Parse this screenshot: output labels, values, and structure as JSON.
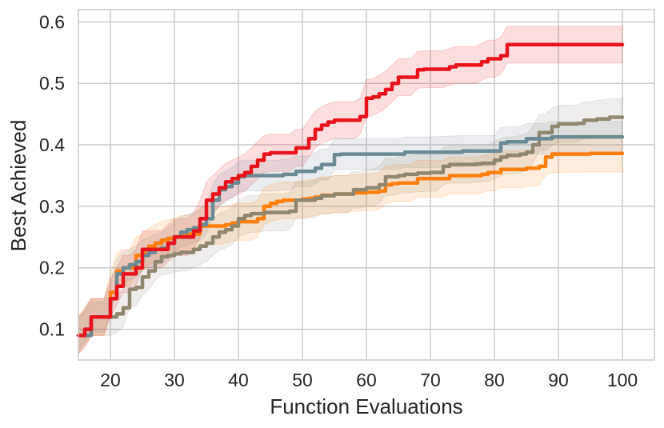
{
  "chart_data": {
    "type": "line",
    "title": "",
    "xlabel": "Function Evaluations",
    "ylabel": "Best Achieved",
    "xlim": [
      15,
      105
    ],
    "ylim": [
      0.05,
      0.62
    ],
    "xticks": [
      20,
      30,
      40,
      50,
      60,
      70,
      80,
      90,
      100
    ],
    "yticks": [
      0.1,
      0.2,
      0.3,
      0.4,
      0.5,
      0.6
    ],
    "grid": true,
    "legend": "none",
    "series": [
      {
        "name": "red",
        "color": "#e8141d",
        "points": [
          [
            15,
            0.09
          ],
          [
            16,
            0.1
          ],
          [
            17,
            0.12
          ],
          [
            18,
            0.12
          ],
          [
            19,
            0.12
          ],
          [
            20,
            0.15
          ],
          [
            21,
            0.17
          ],
          [
            22,
            0.19
          ],
          [
            23,
            0.19
          ],
          [
            24,
            0.2
          ],
          [
            25,
            0.23
          ],
          [
            26,
            0.23
          ],
          [
            27,
            0.23
          ],
          [
            28,
            0.23
          ],
          [
            29,
            0.24
          ],
          [
            30,
            0.25
          ],
          [
            31,
            0.25
          ],
          [
            32,
            0.25
          ],
          [
            33,
            0.26
          ],
          [
            34,
            0.28
          ],
          [
            35,
            0.31
          ],
          [
            36,
            0.32
          ],
          [
            37,
            0.33
          ],
          [
            38,
            0.34
          ],
          [
            39,
            0.345
          ],
          [
            40,
            0.35
          ],
          [
            41,
            0.355
          ],
          [
            42,
            0.365
          ],
          [
            43,
            0.375
          ],
          [
            44,
            0.385
          ],
          [
            45,
            0.387
          ],
          [
            46,
            0.387
          ],
          [
            47,
            0.387
          ],
          [
            48,
            0.387
          ],
          [
            49,
            0.395
          ],
          [
            50,
            0.395
          ],
          [
            51,
            0.41
          ],
          [
            52,
            0.425
          ],
          [
            53,
            0.432
          ],
          [
            54,
            0.437
          ],
          [
            55,
            0.44
          ],
          [
            56,
            0.44
          ],
          [
            57,
            0.44
          ],
          [
            58,
            0.44
          ],
          [
            59,
            0.446
          ],
          [
            60,
            0.476
          ],
          [
            61,
            0.478
          ],
          [
            62,
            0.483
          ],
          [
            63,
            0.49
          ],
          [
            64,
            0.5
          ],
          [
            65,
            0.51
          ],
          [
            66,
            0.51
          ],
          [
            67,
            0.51
          ],
          [
            68,
            0.522
          ],
          [
            69,
            0.523
          ],
          [
            70,
            0.523
          ],
          [
            71,
            0.523
          ],
          [
            72,
            0.523
          ],
          [
            73,
            0.527
          ],
          [
            74,
            0.53
          ],
          [
            75,
            0.53
          ],
          [
            76,
            0.53
          ],
          [
            77,
            0.53
          ],
          [
            78,
            0.535
          ],
          [
            79,
            0.54
          ],
          [
            80,
            0.54
          ],
          [
            81,
            0.545
          ],
          [
            82,
            0.563
          ],
          [
            83,
            0.563
          ],
          [
            84,
            0.563
          ],
          [
            85,
            0.563
          ],
          [
            86,
            0.563
          ],
          [
            88,
            0.563
          ],
          [
            90,
            0.563
          ],
          [
            95,
            0.563
          ],
          [
            100,
            0.563
          ]
        ],
        "band": 0.03
      },
      {
        "name": "slate",
        "color": "#6c8a93",
        "points": [
          [
            15,
            0.09
          ],
          [
            17,
            0.12
          ],
          [
            19,
            0.12
          ],
          [
            20,
            0.15
          ],
          [
            21,
            0.19
          ],
          [
            22,
            0.2
          ],
          [
            23,
            0.205
          ],
          [
            24,
            0.21
          ],
          [
            25,
            0.22
          ],
          [
            26,
            0.225
          ],
          [
            27,
            0.23
          ],
          [
            28,
            0.232
          ],
          [
            29,
            0.24
          ],
          [
            30,
            0.25
          ],
          [
            31,
            0.258
          ],
          [
            32,
            0.262
          ],
          [
            33,
            0.265
          ],
          [
            34,
            0.27
          ],
          [
            35,
            0.28
          ],
          [
            36,
            0.31
          ],
          [
            37,
            0.327
          ],
          [
            38,
            0.332
          ],
          [
            39,
            0.338
          ],
          [
            40,
            0.348
          ],
          [
            41,
            0.35
          ],
          [
            42,
            0.35
          ],
          [
            43,
            0.35
          ],
          [
            44,
            0.35
          ],
          [
            45,
            0.35
          ],
          [
            46,
            0.35
          ],
          [
            47,
            0.352
          ],
          [
            48,
            0.352
          ],
          [
            49,
            0.357
          ],
          [
            50,
            0.357
          ],
          [
            51,
            0.357
          ],
          [
            52,
            0.362
          ],
          [
            53,
            0.368
          ],
          [
            54,
            0.368
          ],
          [
            55,
            0.384
          ],
          [
            56,
            0.385
          ],
          [
            60,
            0.385
          ],
          [
            65,
            0.385
          ],
          [
            66,
            0.388
          ],
          [
            70,
            0.388
          ],
          [
            75,
            0.39
          ],
          [
            80,
            0.39
          ],
          [
            81,
            0.403
          ],
          [
            82,
            0.405
          ],
          [
            84,
            0.405
          ],
          [
            85,
            0.41
          ],
          [
            88,
            0.41
          ],
          [
            89,
            0.413
          ],
          [
            90,
            0.413
          ],
          [
            95,
            0.413
          ],
          [
            100,
            0.413
          ]
        ],
        "band": 0.025
      },
      {
        "name": "khaki",
        "color": "#8f8770",
        "points": [
          [
            15,
            0.09
          ],
          [
            17,
            0.12
          ],
          [
            19,
            0.12
          ],
          [
            20,
            0.12
          ],
          [
            21,
            0.125
          ],
          [
            22,
            0.135
          ],
          [
            23,
            0.165
          ],
          [
            24,
            0.168
          ],
          [
            25,
            0.185
          ],
          [
            26,
            0.195
          ],
          [
            27,
            0.21
          ],
          [
            28,
            0.218
          ],
          [
            29,
            0.22
          ],
          [
            30,
            0.223
          ],
          [
            31,
            0.225
          ],
          [
            32,
            0.225
          ],
          [
            33,
            0.23
          ],
          [
            34,
            0.235
          ],
          [
            35,
            0.24
          ],
          [
            36,
            0.25
          ],
          [
            37,
            0.258
          ],
          [
            38,
            0.262
          ],
          [
            39,
            0.268
          ],
          [
            40,
            0.28
          ],
          [
            41,
            0.285
          ],
          [
            42,
            0.288
          ],
          [
            43,
            0.288
          ],
          [
            44,
            0.29
          ],
          [
            45,
            0.29
          ],
          [
            46,
            0.29
          ],
          [
            47,
            0.29
          ],
          [
            48,
            0.292
          ],
          [
            49,
            0.31
          ],
          [
            50,
            0.31
          ],
          [
            51,
            0.31
          ],
          [
            52,
            0.313
          ],
          [
            53,
            0.317
          ],
          [
            54,
            0.317
          ],
          [
            55,
            0.32
          ],
          [
            56,
            0.32
          ],
          [
            57,
            0.32
          ],
          [
            58,
            0.327
          ],
          [
            59,
            0.327
          ],
          [
            60,
            0.33
          ],
          [
            61,
            0.33
          ],
          [
            62,
            0.335
          ],
          [
            63,
            0.348
          ],
          [
            64,
            0.348
          ],
          [
            65,
            0.35
          ],
          [
            66,
            0.352
          ],
          [
            67,
            0.352
          ],
          [
            68,
            0.354
          ],
          [
            69,
            0.354
          ],
          [
            70,
            0.355
          ],
          [
            71,
            0.355
          ],
          [
            72,
            0.365
          ],
          [
            73,
            0.368
          ],
          [
            74,
            0.368
          ],
          [
            75,
            0.368
          ],
          [
            76,
            0.368
          ],
          [
            77,
            0.369
          ],
          [
            78,
            0.37
          ],
          [
            79,
            0.37
          ],
          [
            80,
            0.375
          ],
          [
            81,
            0.38
          ],
          [
            82,
            0.383
          ],
          [
            83,
            0.383
          ],
          [
            84,
            0.385
          ],
          [
            85,
            0.388
          ],
          [
            86,
            0.4
          ],
          [
            87,
            0.42
          ],
          [
            88,
            0.42
          ],
          [
            89,
            0.43
          ],
          [
            90,
            0.434
          ],
          [
            91,
            0.434
          ],
          [
            92,
            0.434
          ],
          [
            93,
            0.435
          ],
          [
            94,
            0.44
          ],
          [
            95,
            0.44
          ],
          [
            96,
            0.442
          ],
          [
            98,
            0.445
          ],
          [
            100,
            0.445
          ]
        ],
        "band": 0.03
      },
      {
        "name": "orange",
        "color": "#ff7f0e",
        "points": [
          [
            15,
            0.09
          ],
          [
            17,
            0.12
          ],
          [
            19,
            0.12
          ],
          [
            20,
            0.16
          ],
          [
            21,
            0.195
          ],
          [
            22,
            0.2
          ],
          [
            23,
            0.2
          ],
          [
            24,
            0.22
          ],
          [
            25,
            0.225
          ],
          [
            26,
            0.235
          ],
          [
            27,
            0.24
          ],
          [
            28,
            0.245
          ],
          [
            29,
            0.248
          ],
          [
            30,
            0.25
          ],
          [
            31,
            0.255
          ],
          [
            32,
            0.255
          ],
          [
            33,
            0.255
          ],
          [
            34,
            0.268
          ],
          [
            35,
            0.268
          ],
          [
            36,
            0.268
          ],
          [
            37,
            0.268
          ],
          [
            38,
            0.27
          ],
          [
            39,
            0.273
          ],
          [
            40,
            0.275
          ],
          [
            41,
            0.275
          ],
          [
            42,
            0.275
          ],
          [
            43,
            0.28
          ],
          [
            44,
            0.3
          ],
          [
            45,
            0.305
          ],
          [
            46,
            0.308
          ],
          [
            47,
            0.31
          ],
          [
            48,
            0.31
          ],
          [
            49,
            0.31
          ],
          [
            50,
            0.312
          ],
          [
            51,
            0.313
          ],
          [
            52,
            0.315
          ],
          [
            53,
            0.318
          ],
          [
            54,
            0.318
          ],
          [
            55,
            0.32
          ],
          [
            56,
            0.32
          ],
          [
            57,
            0.32
          ],
          [
            58,
            0.322
          ],
          [
            59,
            0.322
          ],
          [
            60,
            0.323
          ],
          [
            61,
            0.323
          ],
          [
            62,
            0.325
          ],
          [
            63,
            0.335
          ],
          [
            64,
            0.337
          ],
          [
            65,
            0.338
          ],
          [
            66,
            0.338
          ],
          [
            67,
            0.338
          ],
          [
            68,
            0.345
          ],
          [
            69,
            0.345
          ],
          [
            70,
            0.345
          ],
          [
            71,
            0.345
          ],
          [
            72,
            0.345
          ],
          [
            73,
            0.35
          ],
          [
            74,
            0.35
          ],
          [
            75,
            0.35
          ],
          [
            76,
            0.35
          ],
          [
            77,
            0.35
          ],
          [
            78,
            0.352
          ],
          [
            79,
            0.355
          ],
          [
            80,
            0.355
          ],
          [
            81,
            0.36
          ],
          [
            82,
            0.36
          ],
          [
            83,
            0.36
          ],
          [
            84,
            0.36
          ],
          [
            85,
            0.362
          ],
          [
            86,
            0.362
          ],
          [
            87,
            0.365
          ],
          [
            88,
            0.38
          ],
          [
            89,
            0.385
          ],
          [
            90,
            0.385
          ],
          [
            95,
            0.386
          ],
          [
            100,
            0.386
          ]
        ],
        "band": 0.03
      }
    ]
  }
}
